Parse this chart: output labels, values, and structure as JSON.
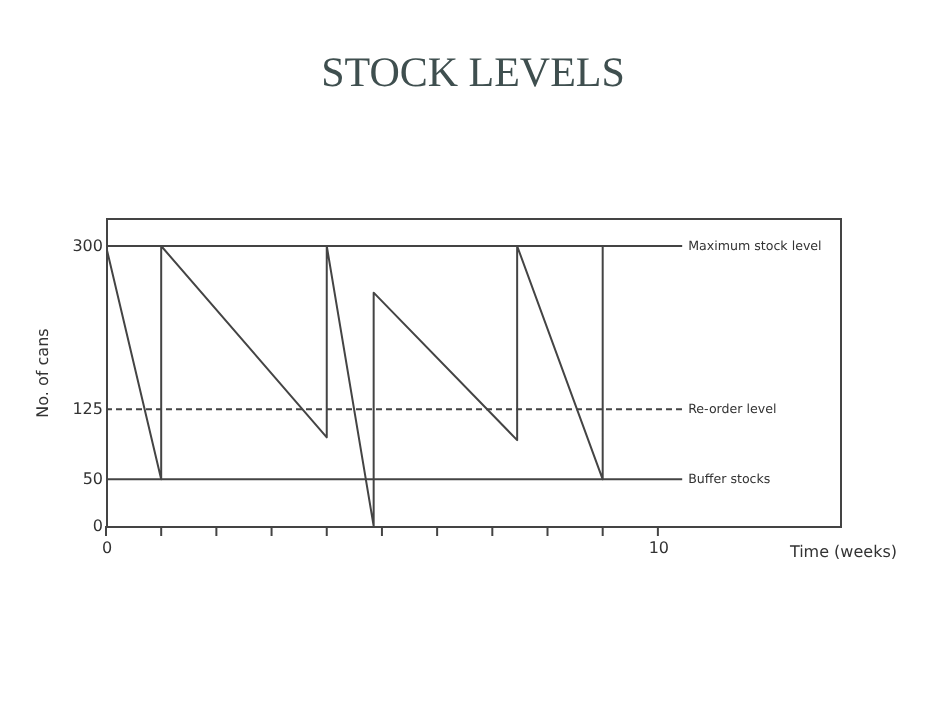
{
  "chart_data": {
    "type": "line",
    "title": "STOCK LEVELS",
    "xlabel": "Time (weeks)",
    "ylabel": "No. of cans",
    "x": [
      0,
      1,
      1,
      4,
      4,
      4.85,
      4.85,
      7.45,
      7.45,
      9,
      9
    ],
    "series": [
      {
        "color": "#444444",
        "values": [
          300,
          50,
          300,
          95,
          300,
          0,
          250,
          92,
          300,
          50,
          300
        ]
      }
    ],
    "xlim": [
      0,
      13.3
    ],
    "ylim": [
      0,
      330
    ],
    "xticks": [
      0,
      {
        "value": 1,
        "label": null
      },
      {
        "value": 2,
        "label": null
      },
      {
        "value": 3,
        "label": null
      },
      {
        "value": 4,
        "label": null
      },
      {
        "value": 5,
        "label": null
      },
      {
        "value": 6,
        "label": null
      },
      {
        "value": 7,
        "label": null
      },
      {
        "value": 8,
        "label": null
      },
      {
        "value": 9,
        "label": null
      },
      10
    ],
    "yticks": [
      0,
      50,
      125,
      300
    ],
    "ref_lines": [
      {
        "axis": "y",
        "value": 300,
        "label": "Maximum stock level",
        "line_style": "solid"
      },
      {
        "axis": "y",
        "value": 125,
        "label": "Re-order level",
        "line_style": "dashed"
      },
      {
        "axis": "y",
        "value": 50,
        "label": "Buffer stocks",
        "line_style": "solid"
      }
    ],
    "grid": false,
    "marker": "none",
    "line_style": "solid"
  }
}
